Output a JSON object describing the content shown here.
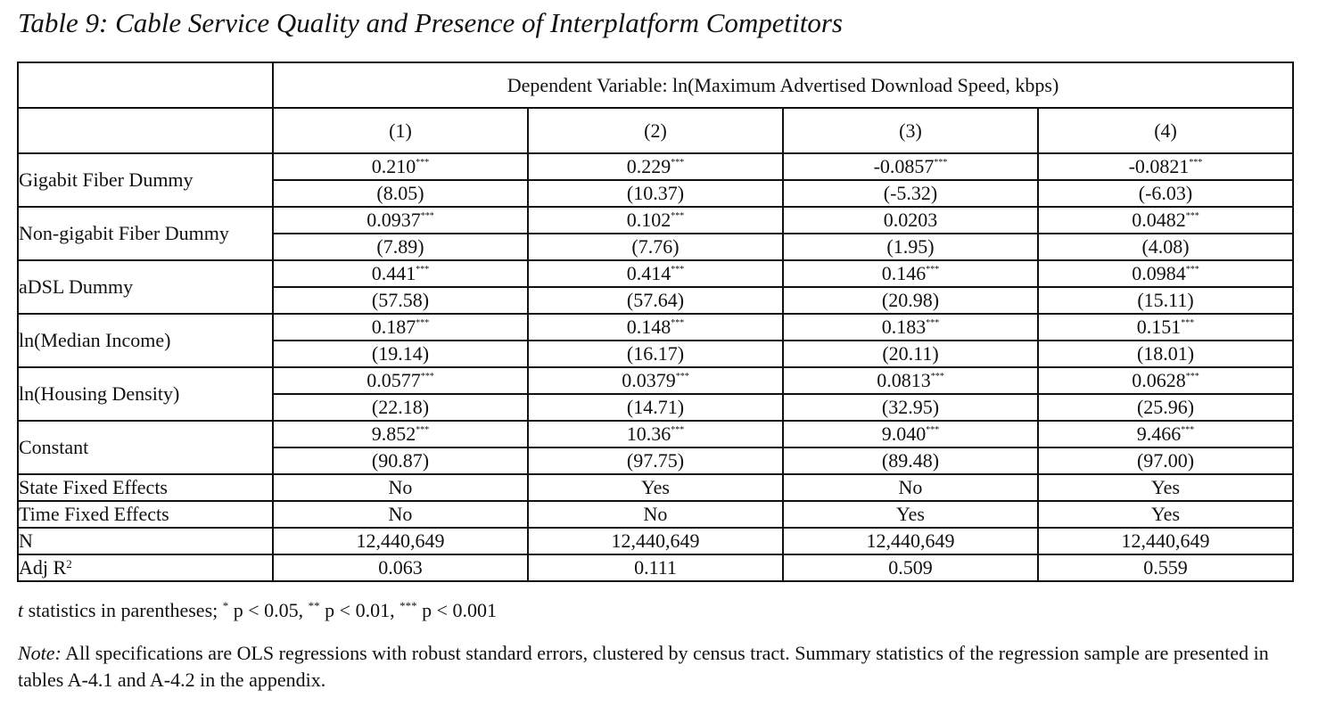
{
  "title": "Table 9: Cable Service Quality and Presence of Interplatform Competitors",
  "table": {
    "dep_var_header": "Dependent Variable: ln(Maximum Advertised Download Speed, kbps)",
    "columns": [
      "(1)",
      "(2)",
      "(3)",
      "(4)"
    ],
    "coef_rows": [
      {
        "label": "Gigabit Fiber Dummy",
        "coefs": [
          "0.210",
          "0.229",
          "-0.0857",
          "-0.0821"
        ],
        "stars": [
          "***",
          "***",
          "***",
          "***"
        ],
        "tstats": [
          "(8.05)",
          "(10.37)",
          "(-5.32)",
          "(-6.03)"
        ]
      },
      {
        "label": "Non-gigabit Fiber Dummy",
        "coefs": [
          "0.0937",
          "0.102",
          "0.0203",
          "0.0482"
        ],
        "stars": [
          "***",
          "***",
          "",
          "***"
        ],
        "tstats": [
          "(7.89)",
          "(7.76)",
          "(1.95)",
          "(4.08)"
        ]
      },
      {
        "label": "aDSL Dummy",
        "coefs": [
          "0.441",
          "0.414",
          "0.146",
          "0.0984"
        ],
        "stars": [
          "***",
          "***",
          "***",
          "***"
        ],
        "tstats": [
          "(57.58)",
          "(57.64)",
          "(20.98)",
          "(15.11)"
        ]
      },
      {
        "label": "ln(Median Income)",
        "coefs": [
          "0.187",
          "0.148",
          "0.183",
          "0.151"
        ],
        "stars": [
          "***",
          "***",
          "***",
          "***"
        ],
        "tstats": [
          "(19.14)",
          "(16.17)",
          "(20.11)",
          "(18.01)"
        ]
      },
      {
        "label": "ln(Housing Density)",
        "coefs": [
          "0.0577",
          "0.0379",
          "0.0813",
          "0.0628"
        ],
        "stars": [
          "***",
          "***",
          "***",
          "***"
        ],
        "tstats": [
          "(22.18)",
          "(14.71)",
          "(32.95)",
          "(25.96)"
        ]
      },
      {
        "label": "Constant",
        "coefs": [
          "9.852",
          "10.36",
          "9.040",
          "9.466"
        ],
        "stars": [
          "***",
          "***",
          "***",
          "***"
        ],
        "tstats": [
          "(90.87)",
          "(97.75)",
          "(89.48)",
          "(97.00)"
        ]
      }
    ],
    "stat_rows": [
      {
        "label": "State Fixed Effects",
        "values": [
          "No",
          "Yes",
          "No",
          "Yes"
        ]
      },
      {
        "label": "Time Fixed Effects",
        "values": [
          "No",
          "No",
          "Yes",
          "Yes"
        ]
      },
      {
        "label": "N",
        "values": [
          "12,440,649",
          "12,440,649",
          "12,440,649",
          "12,440,649"
        ]
      }
    ],
    "adj_r2": {
      "label": "Adj R",
      "label_sup": "2",
      "values": [
        "0.063",
        "0.111",
        "0.509",
        "0.559"
      ]
    }
  },
  "footnote": {
    "t": "t",
    "text1": " statistics in parentheses; ",
    "star1": "*",
    "p1": " p < 0.05, ",
    "star2": "**",
    "p2": " p < 0.01, ",
    "star3": "***",
    "p3": " p < 0.001"
  },
  "note": {
    "label": "Note:",
    "text": " All specifications are OLS regressions with robust standard errors, clustered by census tract. Summary statistics of the regression sample are presented in tables A-4.1 and A-4.2 in the appendix."
  }
}
